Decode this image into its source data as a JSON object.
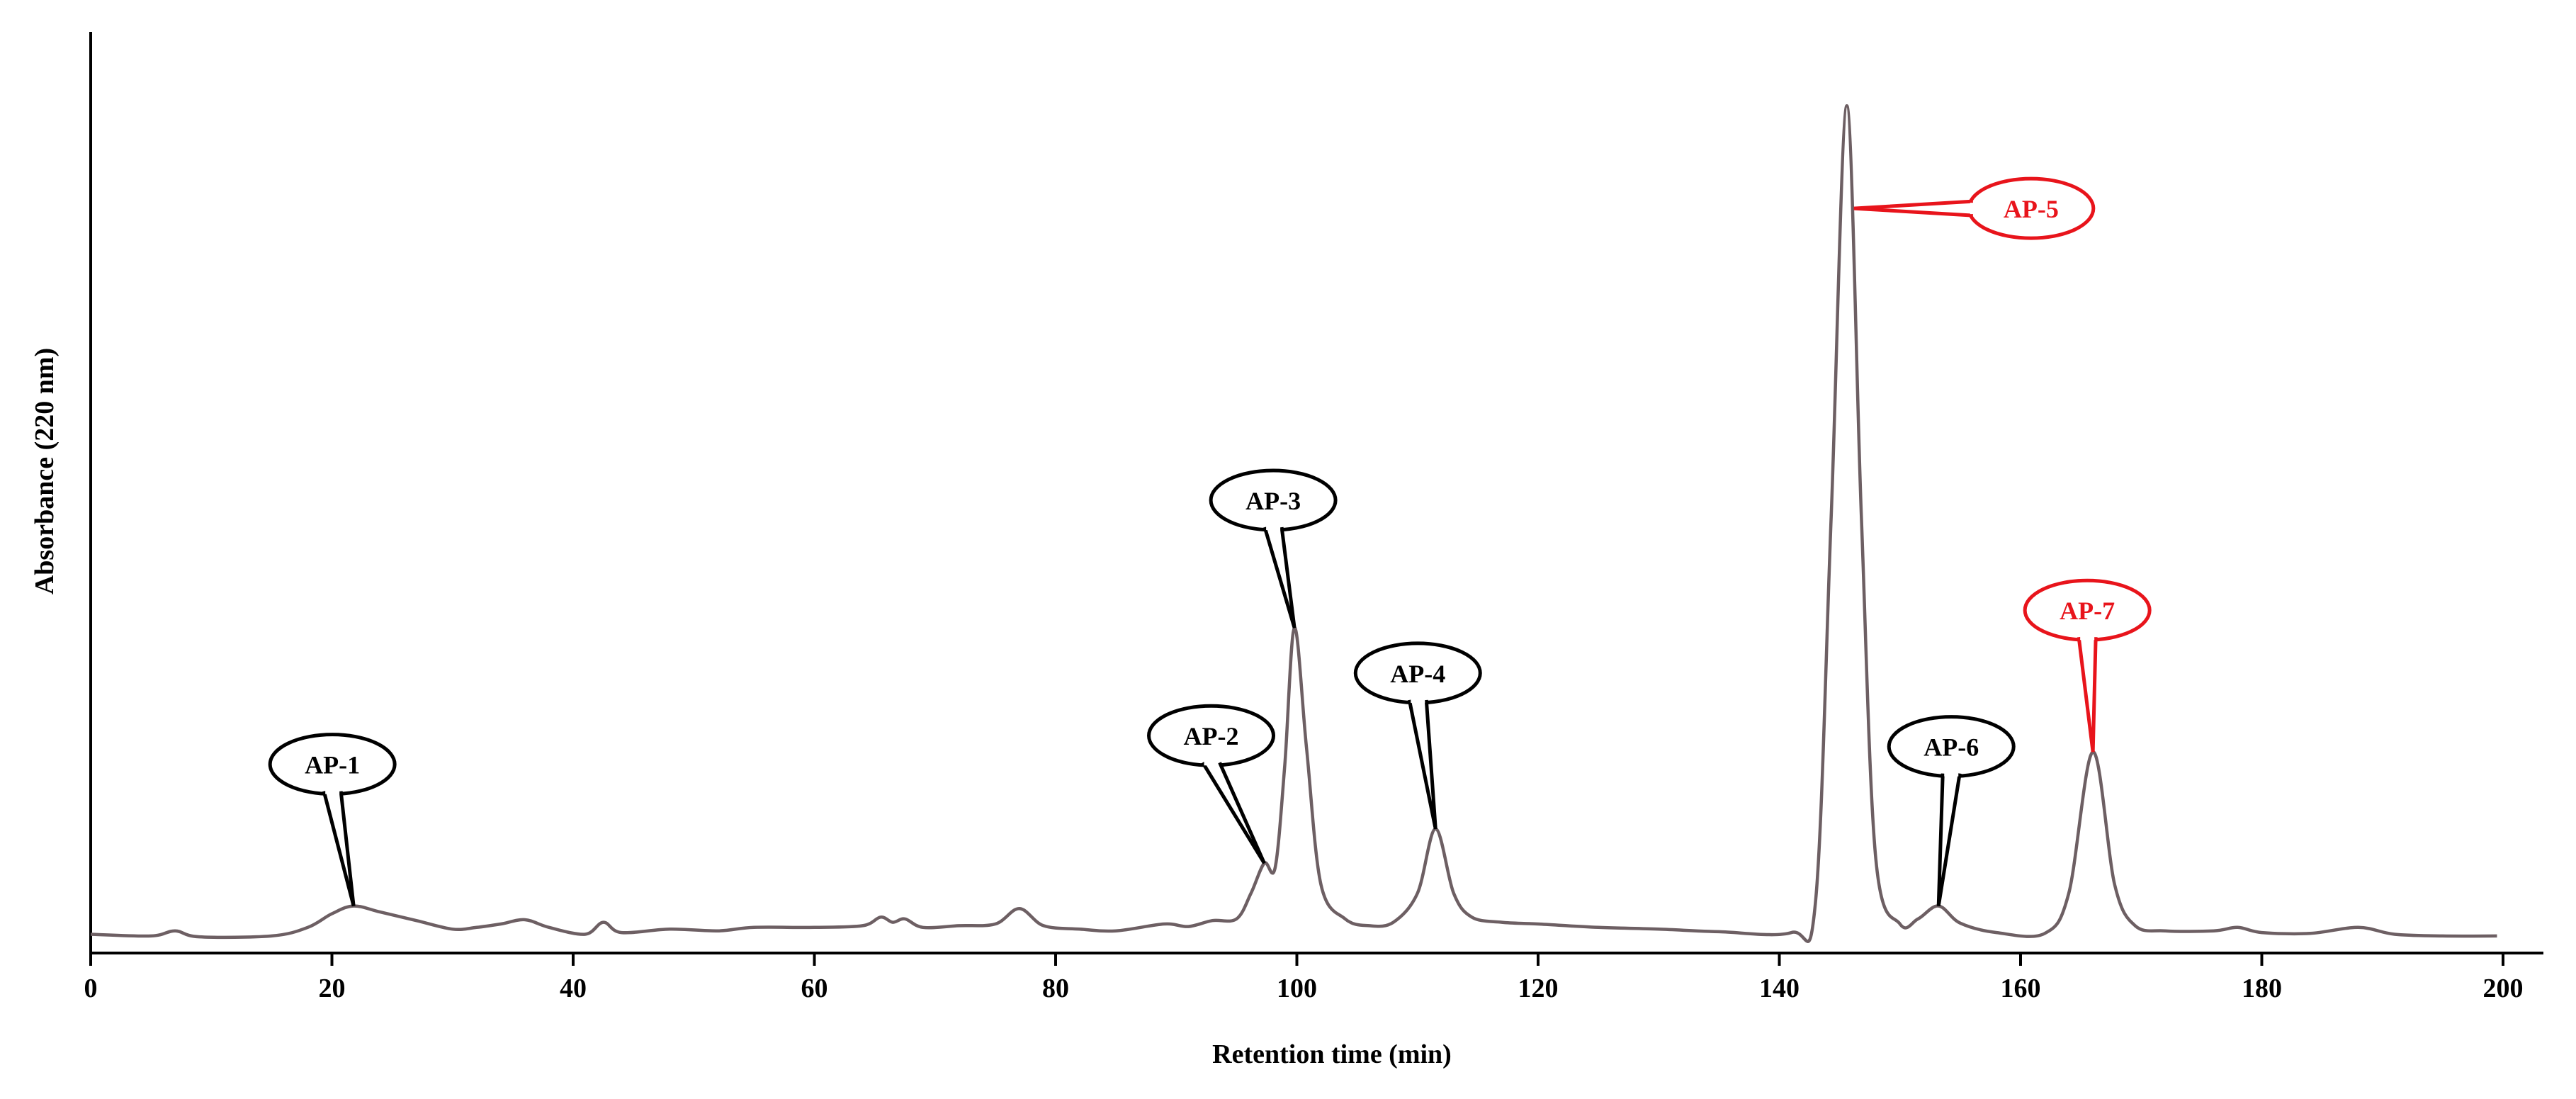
{
  "chart_data": {
    "type": "line",
    "xlabel": "Retention time (min)",
    "ylabel": "Absorbance  (220 nm)",
    "xlim": [
      0,
      200
    ],
    "ylim": [
      0,
      1
    ],
    "x_ticks": [
      0,
      20,
      40,
      60,
      80,
      100,
      120,
      140,
      160,
      180,
      200
    ],
    "grid": false,
    "baseline": 0.015,
    "peaks": [
      {
        "label": "AP-1",
        "x": 21.8,
        "y": 0.045,
        "color": "#000000"
      },
      {
        "label": "AP-2",
        "x": 97.3,
        "y": 0.095,
        "color": "#000000"
      },
      {
        "label": "AP-3",
        "x": 99.8,
        "y": 0.37,
        "color": "#000000"
      },
      {
        "label": "AP-4",
        "x": 111.5,
        "y": 0.135,
        "color": "#000000"
      },
      {
        "label": "AP-5",
        "x": 145.6,
        "y": 0.98,
        "color": "#e8141b"
      },
      {
        "label": "AP-6",
        "x": 153.2,
        "y": 0.045,
        "color": "#000000"
      },
      {
        "label": "AP-7",
        "x": 166.0,
        "y": 0.225,
        "color": "#e8141b"
      }
    ],
    "trace_points": [
      [
        0,
        0.012
      ],
      [
        5,
        0.01
      ],
      [
        7,
        0.016
      ],
      [
        9,
        0.009
      ],
      [
        15,
        0.01
      ],
      [
        18,
        0.02
      ],
      [
        20,
        0.036
      ],
      [
        21.8,
        0.045
      ],
      [
        24,
        0.038
      ],
      [
        27,
        0.028
      ],
      [
        30,
        0.018
      ],
      [
        32,
        0.02
      ],
      [
        34,
        0.024
      ],
      [
        36,
        0.029
      ],
      [
        38,
        0.02
      ],
      [
        41,
        0.012
      ],
      [
        42.5,
        0.026
      ],
      [
        44,
        0.014
      ],
      [
        48,
        0.018
      ],
      [
        52,
        0.016
      ],
      [
        55,
        0.02
      ],
      [
        60,
        0.02
      ],
      [
        64,
        0.022
      ],
      [
        65.5,
        0.032
      ],
      [
        66.5,
        0.026
      ],
      [
        67.5,
        0.03
      ],
      [
        69,
        0.02
      ],
      [
        72,
        0.022
      ],
      [
        75,
        0.024
      ],
      [
        77,
        0.042
      ],
      [
        79,
        0.022
      ],
      [
        82,
        0.018
      ],
      [
        85,
        0.016
      ],
      [
        89,
        0.024
      ],
      [
        91,
        0.021
      ],
      [
        93,
        0.028
      ],
      [
        95,
        0.03
      ],
      [
        96.2,
        0.06
      ],
      [
        97.3,
        0.095
      ],
      [
        98.2,
        0.09
      ],
      [
        99,
        0.21
      ],
      [
        99.8,
        0.37
      ],
      [
        100.8,
        0.23
      ],
      [
        102,
        0.07
      ],
      [
        104,
        0.03
      ],
      [
        106,
        0.022
      ],
      [
        108,
        0.026
      ],
      [
        110,
        0.06
      ],
      [
        111.5,
        0.135
      ],
      [
        113,
        0.06
      ],
      [
        114.5,
        0.032
      ],
      [
        117,
        0.026
      ],
      [
        120,
        0.024
      ],
      [
        125,
        0.02
      ],
      [
        130,
        0.018
      ],
      [
        135,
        0.015
      ],
      [
        141,
        0.014
      ],
      [
        143,
        0.05
      ],
      [
        144.3,
        0.5
      ],
      [
        145.6,
        0.98
      ],
      [
        146.8,
        0.5
      ],
      [
        148,
        0.1
      ],
      [
        150,
        0.024
      ],
      [
        151.5,
        0.03
      ],
      [
        153.2,
        0.045
      ],
      [
        155,
        0.025
      ],
      [
        158,
        0.014
      ],
      [
        162,
        0.013
      ],
      [
        164,
        0.06
      ],
      [
        166.0,
        0.225
      ],
      [
        167.8,
        0.07
      ],
      [
        169.5,
        0.022
      ],
      [
        172,
        0.016
      ],
      [
        176,
        0.016
      ],
      [
        178,
        0.02
      ],
      [
        180,
        0.014
      ],
      [
        184,
        0.013
      ],
      [
        188,
        0.02
      ],
      [
        191,
        0.012
      ],
      [
        195,
        0.01
      ],
      [
        199.5,
        0.01
      ]
    ]
  }
}
